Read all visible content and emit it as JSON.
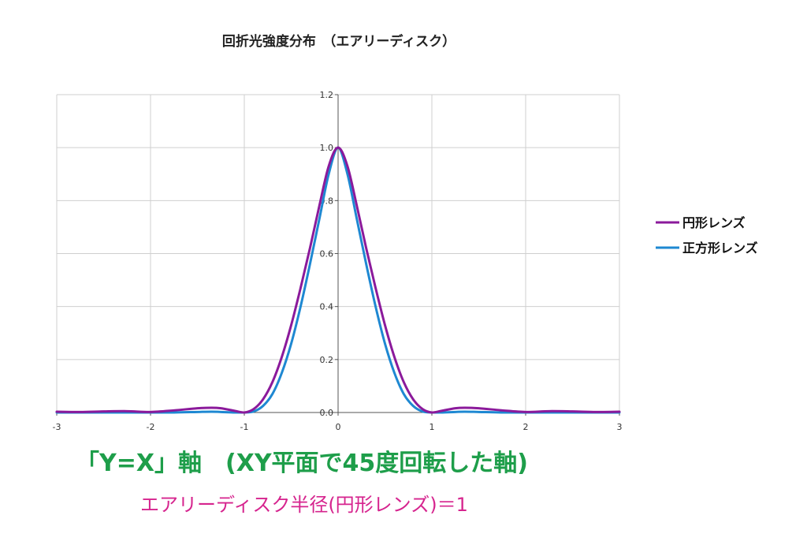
{
  "chart_data": {
    "type": "line",
    "title": "回折光強度分布　（エアリーディスク）",
    "xlim": [
      -3,
      3
    ],
    "ylim": [
      0,
      1.2
    ],
    "x_ticks": [
      -3,
      -2,
      -1,
      0,
      1,
      2,
      3
    ],
    "x_tick_labels": [
      "-3",
      "-2",
      "-1",
      "0",
      "1",
      "2",
      "3"
    ],
    "y_ticks": [
      0,
      0.2,
      0.4,
      0.6,
      0.8,
      1.0,
      1.2
    ],
    "y_tick_labels": [
      "0.0",
      "0.2",
      "0.4",
      "0.6",
      "0.8",
      "1.0",
      "1.2"
    ],
    "grid": true,
    "legend_position": "right",
    "x": [
      -3.0,
      -2.75,
      -2.5,
      -2.25,
      -2.0,
      -1.75,
      -1.5,
      -1.35,
      -1.25,
      -1.1,
      -1.0,
      -0.9,
      -0.8,
      -0.7,
      -0.6,
      -0.5,
      -0.4,
      -0.3,
      -0.2,
      -0.1,
      0.0,
      0.1,
      0.2,
      0.3,
      0.4,
      0.5,
      0.6,
      0.7,
      0.8,
      0.9,
      1.0,
      1.1,
      1.25,
      1.35,
      1.5,
      1.75,
      2.0,
      2.25,
      2.5,
      2.75,
      3.0
    ],
    "series": [
      {
        "name": "円形レンズ",
        "color": "#8B1A9B",
        "values": [
          0.003,
          0.002,
          0.004,
          0.005,
          0.002,
          0.008,
          0.016,
          0.018,
          0.016,
          0.006,
          0.0,
          0.013,
          0.05,
          0.115,
          0.21,
          0.33,
          0.47,
          0.62,
          0.78,
          0.93,
          1.0,
          0.93,
          0.78,
          0.62,
          0.47,
          0.33,
          0.21,
          0.115,
          0.05,
          0.013,
          0.0,
          0.006,
          0.016,
          0.018,
          0.016,
          0.008,
          0.002,
          0.005,
          0.004,
          0.002,
          0.003
        ]
      },
      {
        "name": "正方形レンズ",
        "color": "#1E88D2",
        "values": [
          0.0,
          0.0,
          0.0,
          0.0,
          0.0,
          0.0,
          0.002,
          0.003,
          0.002,
          0.0,
          0.0,
          0.004,
          0.025,
          0.07,
          0.15,
          0.26,
          0.4,
          0.56,
          0.73,
          0.9,
          1.0,
          0.9,
          0.73,
          0.56,
          0.4,
          0.26,
          0.15,
          0.07,
          0.025,
          0.004,
          0.0,
          0.0,
          0.002,
          0.003,
          0.002,
          0.0,
          0.0,
          0.0,
          0.0,
          0.0,
          0.0
        ]
      }
    ]
  },
  "caption_main": "「Y=X」軸　(XY平面で45度回転した軸)",
  "caption_main_color": "#1E9E4A",
  "caption_sub": "エアリーディスク半径(円形レンズ)＝1",
  "caption_sub_color": "#D6248E"
}
